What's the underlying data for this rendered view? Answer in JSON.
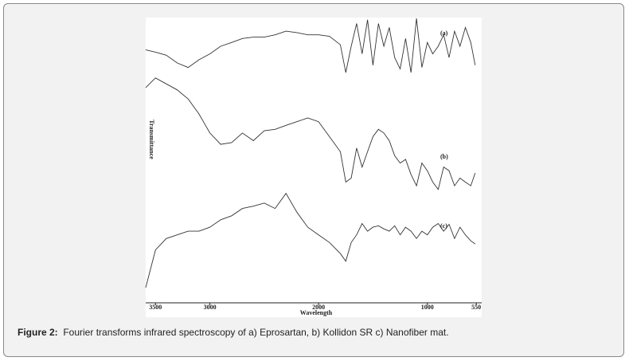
{
  "chart_data": {
    "type": "line",
    "x_label": "Wavelength",
    "y_label": "Transmittance",
    "xlim": [
      3590,
      500
    ],
    "ylim": [
      0,
      100
    ],
    "xticks": [
      3500,
      3000,
      2000,
      1000,
      550
    ],
    "x": [
      3590,
      3500,
      3400,
      3300,
      3200,
      3100,
      3000,
      2900,
      2800,
      2700,
      2600,
      2500,
      2400,
      2300,
      2200,
      2100,
      2000,
      1900,
      1800,
      1750,
      1700,
      1650,
      1600,
      1550,
      1500,
      1450,
      1400,
      1350,
      1300,
      1250,
      1200,
      1150,
      1100,
      1050,
      1000,
      950,
      900,
      850,
      800,
      750,
      700,
      650,
      600,
      560
    ],
    "series": [
      {
        "name": "(a)",
        "color": "#333333",
        "values": [
          88.6,
          87.8,
          86.7,
          84.0,
          82.4,
          85.1,
          87.2,
          89.9,
          91.2,
          92.6,
          93.1,
          93.1,
          93.9,
          95.2,
          94.7,
          93.9,
          93.9,
          93.4,
          90.4,
          80.6,
          89.9,
          97.9,
          87.2,
          99.2,
          83.2,
          97.9,
          89.9,
          96.5,
          85.9,
          81.9,
          92.6,
          80.6,
          99.7,
          82.4,
          91.2,
          87.2,
          89.9,
          93.9,
          85.9,
          95.2,
          89.9,
          96.5,
          91.2,
          83.2
        ]
      },
      {
        "name": "(b)",
        "color": "#333333",
        "values": [
          75.3,
          78.7,
          76.6,
          74.5,
          71.3,
          66.0,
          59.3,
          55.3,
          55.9,
          59.3,
          56.6,
          60.1,
          60.6,
          62.0,
          63.3,
          64.6,
          63.3,
          58.0,
          52.7,
          42.0,
          43.4,
          54.0,
          47.3,
          52.7,
          58.0,
          60.6,
          59.3,
          56.6,
          51.3,
          48.7,
          50.0,
          44.7,
          40.7,
          48.7,
          46.0,
          42.0,
          39.4,
          47.3,
          46.0,
          40.7,
          43.4,
          42.0,
          40.7,
          45.2
        ]
      },
      {
        "name": "(c)",
        "color": "#333333",
        "values": [
          4.8,
          18.1,
          22.1,
          23.4,
          24.7,
          24.7,
          26.1,
          28.7,
          30.1,
          32.7,
          33.5,
          34.6,
          32.7,
          38.0,
          31.4,
          26.1,
          23.4,
          20.7,
          16.8,
          14.1,
          20.7,
          23.4,
          27.4,
          24.7,
          26.1,
          26.6,
          25.5,
          24.7,
          26.6,
          23.4,
          26.1,
          24.7,
          22.1,
          24.7,
          23.4,
          26.1,
          27.4,
          24.7,
          27.1,
          22.1,
          26.1,
          23.4,
          21.3,
          20.2
        ]
      }
    ]
  },
  "caption": {
    "label": "Figure 2:",
    "text": "Fourier transforms infrared spectroscopy of a) Eprosartan, b) Kollidon SR c) Nanofiber mat."
  }
}
